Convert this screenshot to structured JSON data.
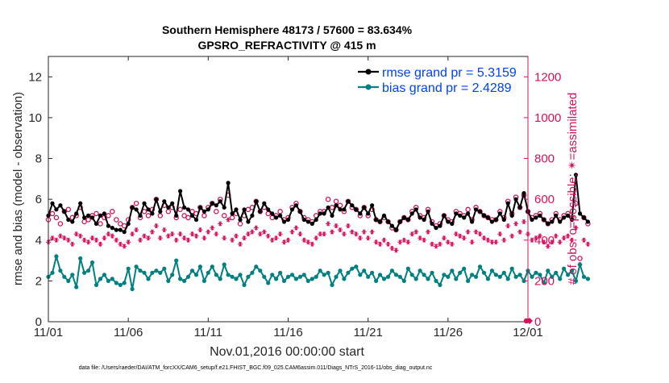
{
  "chart_data": {
    "type": "line",
    "title": "Southern Hemisphere 48173 / 57600 = 83.634%",
    "subtitle": "GPSRO_REFRACTIVITY @ 415 m",
    "xlabel": "Nov.01,2016 00:00:00 start",
    "ylabel_left": "rmse and bias (model - observation)",
    "ylabel_right": "# of obs: o=possible; ✴=assimilated",
    "footnote": "data file: /Users/raeder/DAI/ATM_forcXX/CAM6_setup/f.e21.FHIST_BGC.f09_025.CAM6assim.011/Diags_NTrS_2016-11/obs_diag_output.nc",
    "x_ticks": [
      "11/01",
      "11/06",
      "11/11",
      "11/16",
      "11/21",
      "11/26",
      "12/01"
    ],
    "x_range_days": [
      0,
      30
    ],
    "ylim_left": [
      0,
      13
    ],
    "y_ticks_left": [
      "0",
      "2",
      "4",
      "6",
      "8",
      "10",
      "12"
    ],
    "ylim_right": [
      0,
      1300
    ],
    "y_ticks_right": [
      "0",
      "200",
      "400",
      "600",
      "800",
      "1000",
      "1200"
    ],
    "grid": false,
    "legend_position": "top-right",
    "colors": {
      "rmse": "#000000",
      "bias": "#008080",
      "obs": "#d6105e",
      "legend_text": "#0041f5"
    },
    "series": [
      {
        "name": "rmse grand pr = 5.3159",
        "axis": "left",
        "start_day": 0,
        "step_days": 0.25,
        "values": [
          5.2,
          5.8,
          5.5,
          5.7,
          5.4,
          5.0,
          4.9,
          5.3,
          5.8,
          5.1,
          5.2,
          5.1,
          4.8,
          5.2,
          5.3,
          4.7,
          4.6,
          4.5,
          4.5,
          4.4,
          4.8,
          5.6,
          5.5,
          5.2,
          5.8,
          5.5,
          5.3,
          6.0,
          5.4,
          5.9,
          5.6,
          5.8,
          5.2,
          6.4,
          5.6,
          5.5,
          5.2,
          5.0,
          5.6,
          5.4,
          5.5,
          5.8,
          5.7,
          5.9,
          5.6,
          6.8,
          5.3,
          5.5,
          5.0,
          5.5,
          4.9,
          5.2,
          5.9,
          5.4,
          5.8,
          5.5,
          5.3,
          5.1,
          5.2,
          4.9,
          5.0,
          5.5,
          5.7,
          5.4,
          5.0,
          4.9,
          4.8,
          5.0,
          5.3,
          5.3,
          5.6,
          5.2,
          5.7,
          5.5,
          5.5,
          5.9,
          5.7,
          5.5,
          5.3,
          5.6,
          5.3,
          5.7,
          5.0,
          4.9,
          5.2,
          4.9,
          4.7,
          4.5,
          4.9,
          5.1,
          5.0,
          5.3,
          5.5,
          5.1,
          5.0,
          5.4,
          4.8,
          4.6,
          4.7,
          5.2,
          4.9,
          4.8,
          5.3,
          5.2,
          5.1,
          5.3,
          4.9,
          5.5,
          5.4,
          5.2,
          5.1,
          4.9,
          5.0,
          5.3,
          5.0,
          5.8,
          5.2,
          6.0,
          5.6,
          6.3,
          5.4,
          5.0,
          5.1,
          5.2,
          5.0,
          4.8,
          4.9,
          5.2,
          4.9,
          5.1,
          5.2,
          5.0,
          7.2,
          5.3,
          5.1,
          4.9
        ]
      },
      {
        "name": "bias grand pr = 2.4289",
        "axis": "left",
        "start_day": 0,
        "step_days": 0.25,
        "values": [
          2.2,
          2.4,
          3.2,
          2.5,
          2.2,
          2.0,
          2.3,
          1.7,
          3.1,
          2.4,
          2.5,
          2.9,
          1.8,
          2.1,
          2.3,
          2.0,
          2.1,
          1.9,
          1.8,
          1.9,
          2.6,
          1.6,
          2.7,
          2.5,
          2.4,
          2.1,
          2.4,
          2.5,
          2.4,
          2.6,
          2.0,
          2.3,
          3.0,
          2.1,
          2.0,
          2.2,
          2.5,
          2.3,
          2.7,
          2.0,
          2.4,
          2.7,
          2.3,
          2.1,
          2.8,
          2.3,
          2.2,
          2.1,
          2.3,
          1.8,
          2.2,
          2.4,
          2.7,
          2.5,
          2.2,
          1.9,
          2.3,
          2.1,
          2.4,
          2.0,
          2.2,
          2.3,
          2.1,
          2.2,
          2.3,
          2.0,
          2.1,
          2.2,
          2.5,
          2.3,
          2.4,
          1.8,
          2.2,
          2.5,
          2.1,
          2.4,
          2.6,
          2.7,
          2.3,
          2.5,
          2.2,
          2.4,
          2.0,
          2.3,
          2.1,
          2.2,
          2.5,
          2.3,
          2.2,
          2.0,
          2.6,
          2.3,
          2.1,
          2.5,
          2.3,
          2.1,
          2.4,
          2.0,
          1.8,
          2.3,
          2.2,
          2.5,
          2.1,
          2.4,
          2.6,
          2.0,
          2.3,
          2.2,
          2.7,
          2.4,
          2.1,
          2.5,
          2.3,
          2.2,
          2.4,
          2.1,
          2.6,
          2.2,
          2.3,
          2.0,
          2.5,
          2.2,
          2.4,
          2.3,
          1.9,
          2.5,
          2.2,
          2.4,
          2.1,
          2.6,
          2.3,
          2.5,
          2.0,
          2.8,
          2.2,
          2.1
        ]
      },
      {
        "name": "possible",
        "axis": "right",
        "start_day": 0,
        "step_days": 0.25,
        "values": [
          500,
          530,
          510,
          480,
          540,
          550,
          510,
          520,
          560,
          490,
          500,
          520,
          530,
          480,
          510,
          520,
          540,
          500,
          480,
          470,
          500,
          560,
          580,
          510,
          540,
          520,
          550,
          600,
          520,
          570,
          540,
          560,
          510,
          550,
          520,
          510,
          540,
          530,
          560,
          520,
          560,
          580,
          540,
          600,
          520,
          620,
          510,
          530,
          480,
          520,
          550,
          560,
          590,
          540,
          560,
          530,
          510,
          520,
          540,
          500,
          510,
          560,
          580,
          540,
          510,
          500,
          490,
          520,
          540,
          540,
          600,
          560,
          590,
          570,
          540,
          590,
          560,
          550,
          520,
          560,
          520,
          550,
          500,
          490,
          510,
          490,
          460,
          450,
          490,
          510,
          500,
          540,
          560,
          520,
          510,
          550,
          490,
          470,
          480,
          520,
          500,
          490,
          540,
          530,
          520,
          550,
          500,
          560,
          540,
          520,
          510,
          500,
          500,
          540,
          510,
          590,
          530,
          610,
          560,
          620,
          540,
          510,
          520,
          530,
          500,
          480,
          500,
          530,
          500,
          520,
          530,
          510,
          580,
          310,
          510,
          480
        ]
      },
      {
        "name": "assimilated",
        "axis": "right",
        "start_day": 0,
        "step_days": 0.25,
        "values": [
          390,
          410,
          400,
          420,
          410,
          400,
          380,
          430,
          420,
          400,
          390,
          410,
          400,
          380,
          410,
          430,
          420,
          400,
          380,
          370,
          390,
          430,
          450,
          400,
          420,
          410,
          440,
          470,
          410,
          450,
          420,
          430,
          400,
          430,
          410,
          400,
          430,
          420,
          450,
          410,
          440,
          460,
          430,
          480,
          410,
          500,
          400,
          420,
          380,
          410,
          430,
          440,
          460,
          430,
          440,
          420,
          400,
          410,
          430,
          390,
          400,
          440,
          460,
          430,
          400,
          390,
          380,
          410,
          430,
          430,
          480,
          440,
          470,
          450,
          430,
          470,
          440,
          430,
          410,
          440,
          410,
          440,
          390,
          380,
          400,
          380,
          360,
          350,
          390,
          400,
          390,
          430,
          440,
          410,
          400,
          440,
          380,
          370,
          380,
          410,
          390,
          380,
          430,
          420,
          410,
          440,
          390,
          440,
          430,
          410,
          400,
          390,
          390,
          430,
          400,
          470,
          420,
          480,
          440,
          490,
          430,
          400,
          410,
          420,
          390,
          370,
          390,
          420,
          390,
          410,
          420,
          400,
          460,
          280,
          400,
          380
        ]
      }
    ]
  }
}
